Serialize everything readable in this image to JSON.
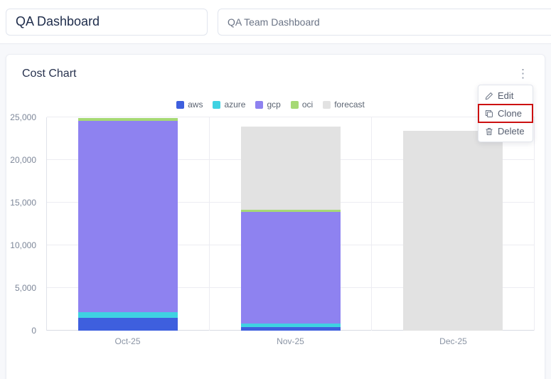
{
  "topbar": {
    "title": "QA Dashboard",
    "dashboard_name": "QA Team Dashboard"
  },
  "card": {
    "title": "Cost Chart",
    "menu_icon": "⋮"
  },
  "menu": {
    "items": [
      {
        "label": "Edit",
        "icon": "pencil-icon"
      },
      {
        "label": "Clone",
        "icon": "copy-icon"
      },
      {
        "label": "Delete",
        "icon": "trash-icon"
      }
    ],
    "highlighted_item": "Clone",
    "highlight_color": "#cc1111"
  },
  "chart_data": {
    "type": "bar",
    "stacked": true,
    "title": "Cost Chart",
    "categories": [
      "Oct-25",
      "Nov-25",
      "Dec-25"
    ],
    "series": [
      {
        "name": "aws",
        "color": "#3e5fde",
        "values": [
          1500,
          400,
          0
        ]
      },
      {
        "name": "azure",
        "color": "#3fd2e2",
        "values": [
          700,
          400,
          0
        ]
      },
      {
        "name": "gcp",
        "color": "#8e82f0",
        "values": [
          22400,
          13100,
          0
        ]
      },
      {
        "name": "oci",
        "color": "#a6d975",
        "values": [
          300,
          300,
          0
        ]
      },
      {
        "name": "forecast",
        "color": "#e2e2e2",
        "values": [
          0,
          9700,
          23400
        ]
      }
    ],
    "ylim": [
      0,
      25000
    ],
    "yticks": [
      0,
      5000,
      10000,
      15000,
      20000,
      25000
    ],
    "xlabel": "",
    "ylabel": "",
    "legend_position": "top",
    "grid": true
  }
}
